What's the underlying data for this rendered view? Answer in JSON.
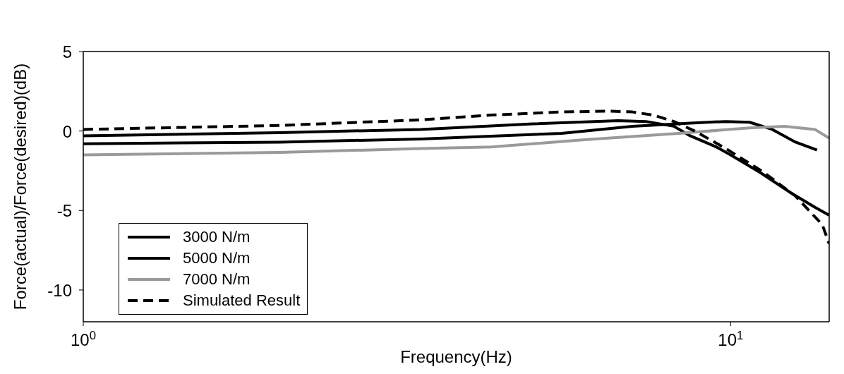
{
  "chart_data": {
    "type": "line",
    "xlabel": "Frequency(Hz)",
    "ylabel": "Force(actual)/Force(desired)(dB)",
    "log": "x",
    "xlim": [
      1,
      14.2
    ],
    "xticks": [
      {
        "value": 1,
        "label": "10$^{0}$"
      },
      {
        "value": 10,
        "label": "10$^{1}$"
      }
    ],
    "ylim": [
      -12,
      5
    ],
    "yticks": [
      -10,
      -5,
      0,
      5
    ],
    "grid": false,
    "legend": "bottom left",
    "marker": "none",
    "series": [
      {
        "name": "3000 N/m",
        "color": "#000000",
        "line_style": "solid",
        "x": [
          1,
          2.01,
          3.32,
          4.95,
          6.7,
          7.4,
          8.17,
          8.66,
          9.5,
          10,
          11.1,
          12.4,
          13.5,
          14.2
        ],
        "values": [
          -0.3,
          -0.1,
          0.1,
          0.45,
          0.65,
          0.6,
          0.3,
          -0.3,
          -1.0,
          -1.5,
          -2.6,
          -3.9,
          -4.8,
          -5.3
        ]
      },
      {
        "name": "5000 N/m",
        "color": "#000000",
        "line_style": "solid",
        "x": [
          1,
          2.01,
          3.32,
          5.48,
          7.05,
          8.66,
          9.83,
          10.7,
          11.6,
          12.6,
          13.6
        ],
        "values": [
          -0.8,
          -0.7,
          -0.5,
          -0.15,
          0.3,
          0.5,
          0.6,
          0.55,
          0.1,
          -0.7,
          -1.2
        ]
      },
      {
        "name": "7000 N/m",
        "color": "#9a9a9a",
        "line_style": "solid",
        "x": [
          1,
          2.01,
          3.32,
          4.27,
          5.95,
          8.32,
          10.7,
          12.1,
          13.5,
          14.2
        ],
        "values": [
          -1.5,
          -1.35,
          -1.1,
          -1.0,
          -0.55,
          -0.15,
          0.2,
          0.3,
          0.1,
          -0.45
        ]
      },
      {
        "name": "Simulated Result",
        "color": "#000000",
        "line_style": "dashed",
        "x": [
          1,
          2.01,
          3.32,
          4.27,
          5.5,
          6.5,
          7.05,
          7.6,
          8.17,
          8.8,
          9.83,
          11.25,
          12.6,
          13.86,
          14.2
        ],
        "values": [
          0.1,
          0.35,
          0.7,
          1.0,
          1.2,
          1.25,
          1.2,
          1.0,
          0.6,
          0.0,
          -1.1,
          -2.6,
          -4.1,
          -5.9,
          -7.1
        ]
      }
    ]
  }
}
